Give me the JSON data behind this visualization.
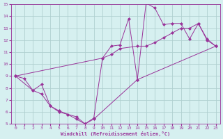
{
  "xlabel": "Windchill (Refroidissement éolien,°C)",
  "bg_color": "#d6f0f0",
  "grid_color": "#b0d0d0",
  "line_color": "#993399",
  "xlim": [
    -0.5,
    23.5
  ],
  "ylim": [
    5,
    15
  ],
  "xticks": [
    0,
    1,
    2,
    3,
    4,
    5,
    6,
    7,
    8,
    9,
    10,
    11,
    12,
    13,
    14,
    15,
    16,
    17,
    18,
    19,
    20,
    21,
    22,
    23
  ],
  "yticks": [
    5,
    6,
    7,
    8,
    9,
    10,
    11,
    12,
    13,
    14,
    15
  ],
  "line1_x": [
    0,
    1,
    2,
    3,
    4,
    5,
    6,
    7,
    8,
    9,
    10,
    11,
    12,
    13,
    14,
    15,
    16,
    17,
    18,
    19,
    20,
    21,
    22,
    23
  ],
  "line1_y": [
    9.0,
    8.8,
    7.8,
    8.3,
    6.5,
    6.1,
    5.8,
    5.6,
    5.0,
    5.5,
    10.5,
    11.5,
    11.6,
    13.8,
    8.7,
    15.1,
    14.7,
    13.3,
    13.4,
    13.4,
    12.1,
    13.4,
    12.1,
    11.5
  ],
  "line2_x": [
    0,
    10,
    11,
    12,
    14,
    15,
    16,
    17,
    18,
    19,
    20,
    21,
    22,
    23
  ],
  "line2_y": [
    9.0,
    10.5,
    10.8,
    11.3,
    11.5,
    11.5,
    11.8,
    12.2,
    12.6,
    13.0,
    13.0,
    13.4,
    12.0,
    11.5
  ],
  "line3_x": [
    0,
    2,
    3,
    4,
    5,
    6,
    7,
    8,
    9,
    14,
    23
  ],
  "line3_y": [
    9.0,
    7.8,
    7.5,
    6.5,
    6.0,
    5.8,
    5.4,
    5.0,
    5.4,
    8.7,
    11.5
  ]
}
